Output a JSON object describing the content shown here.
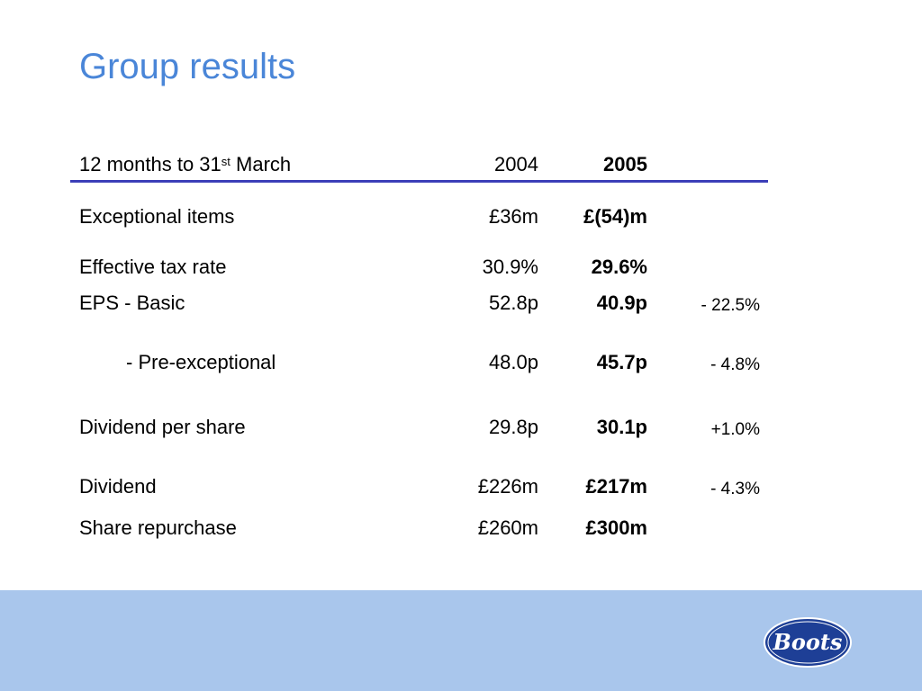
{
  "slide": {
    "title": "Group results"
  },
  "table": {
    "header": {
      "label_pre": "12 months to 31",
      "label_sup": "st",
      "label_post": " March",
      "col_2004": "2004",
      "col_2005": "2005"
    },
    "rows": [
      {
        "label": "Exceptional items",
        "v2004": "£36m",
        "v2005": "£(54)m",
        "change": ""
      },
      {
        "label": "Effective tax rate",
        "v2004": "30.9%",
        "v2005": "29.6%",
        "change": ""
      },
      {
        "label": "EPS - Basic",
        "v2004": "52.8p",
        "v2005": "40.9p",
        "change": "- 22.5%"
      },
      {
        "label": "- Pre-exceptional",
        "v2004": "48.0p",
        "v2005": "45.7p",
        "change": "- 4.8%"
      },
      {
        "label": "Dividend per share",
        "v2004": "29.8p",
        "v2005": "30.1p",
        "change": "+1.0%"
      },
      {
        "label": "Dividend",
        "v2004": "£226m",
        "v2005": "£217m",
        "change": "- 4.3%"
      },
      {
        "label": "Share repurchase",
        "v2004": "£260m",
        "v2005": "£300m",
        "change": ""
      }
    ]
  },
  "logo": {
    "text": "Boots"
  },
  "colors": {
    "title": "#4a86d8",
    "rule": "#3c3fb8",
    "footer": "#a9c6ec",
    "logo_bg": "#1e3f96"
  }
}
